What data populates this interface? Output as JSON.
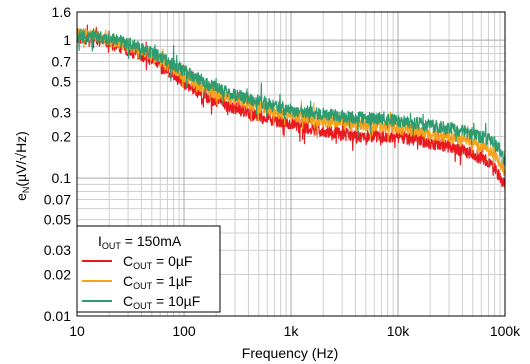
{
  "chart_data": {
    "type": "line",
    "xlabel": "Frequency (Hz)",
    "ylabel_main": "e",
    "ylabel_sub": "N",
    "ylabel_unit": "(µV/√Hz)",
    "x_scale": "log",
    "y_scale": "log",
    "xlim": [
      10,
      100000
    ],
    "ylim": [
      0.01,
      1.6
    ],
    "grid": true,
    "x_ticks": [
      {
        "value": 10,
        "label": "10"
      },
      {
        "value": 100,
        "label": "100"
      },
      {
        "value": 1000,
        "label": "1k"
      },
      {
        "value": 10000,
        "label": "10k"
      },
      {
        "value": 100000,
        "label": "100k"
      }
    ],
    "y_ticks": [
      {
        "value": 1.6,
        "label": "1.6"
      },
      {
        "value": 1,
        "label": "1"
      },
      {
        "value": 0.7,
        "label": "0.7"
      },
      {
        "value": 0.5,
        "label": "0.5"
      },
      {
        "value": 0.3,
        "label": "0.3"
      },
      {
        "value": 0.2,
        "label": "0.2"
      },
      {
        "value": 0.1,
        "label": "0.1"
      },
      {
        "value": 0.07,
        "label": "0.07"
      },
      {
        "value": 0.05,
        "label": "0.05"
      },
      {
        "value": 0.03,
        "label": "0.03"
      },
      {
        "value": 0.02,
        "label": "0.02"
      },
      {
        "value": 0.01,
        "label": "0.01"
      }
    ],
    "legend": {
      "placement": "bottom-left",
      "header_main": "I",
      "header_sub": "OUT",
      "header_value": " = 150mA"
    },
    "series": [
      {
        "color": "#e8191f",
        "label_main": "C",
        "label_sub": "OUT",
        "label_value": " = 0µF",
        "x": [
          10,
          15,
          20,
          30,
          50,
          70,
          100,
          150,
          200,
          300,
          500,
          700,
          1000,
          1500,
          2000,
          3000,
          5000,
          7000,
          10000,
          15000,
          20000,
          30000,
          50000,
          70000,
          80000,
          90000,
          100000
        ],
        "y": [
          1.05,
          1.02,
          0.95,
          0.85,
          0.72,
          0.6,
          0.5,
          0.4,
          0.36,
          0.32,
          0.28,
          0.26,
          0.25,
          0.23,
          0.22,
          0.21,
          0.2,
          0.2,
          0.2,
          0.19,
          0.18,
          0.17,
          0.15,
          0.13,
          0.12,
          0.1,
          0.09
        ]
      },
      {
        "color": "#f7a21b",
        "label_main": "C",
        "label_sub": "OUT",
        "label_value": " = 1µF",
        "x": [
          10,
          15,
          20,
          30,
          50,
          70,
          100,
          150,
          200,
          300,
          500,
          700,
          1000,
          1500,
          2000,
          3000,
          5000,
          7000,
          10000,
          15000,
          20000,
          30000,
          50000,
          70000,
          80000,
          90000,
          100000
        ],
        "y": [
          1.1,
          1.08,
          1.0,
          0.92,
          0.78,
          0.66,
          0.55,
          0.45,
          0.41,
          0.37,
          0.33,
          0.3,
          0.29,
          0.27,
          0.26,
          0.25,
          0.24,
          0.24,
          0.23,
          0.22,
          0.21,
          0.2,
          0.18,
          0.16,
          0.15,
          0.13,
          0.11
        ]
      },
      {
        "color": "#2e9c6e",
        "label_main": "C",
        "label_sub": "OUT",
        "label_value": " = 10µF",
        "x": [
          10,
          15,
          20,
          30,
          50,
          70,
          100,
          150,
          200,
          300,
          500,
          700,
          1000,
          1500,
          2000,
          3000,
          5000,
          7000,
          10000,
          15000,
          20000,
          30000,
          50000,
          70000,
          80000,
          90000,
          100000
        ],
        "y": [
          1.1,
          1.07,
          1.02,
          0.95,
          0.82,
          0.7,
          0.6,
          0.5,
          0.45,
          0.4,
          0.36,
          0.33,
          0.31,
          0.3,
          0.29,
          0.28,
          0.27,
          0.27,
          0.26,
          0.25,
          0.24,
          0.23,
          0.21,
          0.19,
          0.18,
          0.16,
          0.13
        ]
      }
    ]
  }
}
